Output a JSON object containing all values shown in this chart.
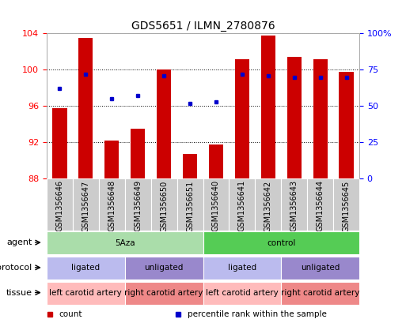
{
  "title": "GDS5651 / ILMN_2780876",
  "samples": [
    "GSM1356646",
    "GSM1356647",
    "GSM1356648",
    "GSM1356649",
    "GSM1356650",
    "GSM1356651",
    "GSM1356640",
    "GSM1356641",
    "GSM1356642",
    "GSM1356643",
    "GSM1356644",
    "GSM1356645"
  ],
  "bar_values": [
    95.8,
    103.5,
    92.2,
    93.5,
    100.0,
    90.7,
    91.8,
    101.2,
    103.8,
    101.4,
    101.2,
    99.8
  ],
  "dot_values": [
    62,
    72,
    55,
    57,
    71,
    52,
    53,
    72,
    71,
    70,
    70,
    70
  ],
  "bar_bottom": 88,
  "ylim_left": [
    88,
    104
  ],
  "ylim_right": [
    0,
    100
  ],
  "yticks_left": [
    88,
    92,
    96,
    100,
    104
  ],
  "yticks_right": [
    0,
    25,
    50,
    75,
    100
  ],
  "yticklabels_right": [
    "0",
    "25",
    "50",
    "75",
    "100%"
  ],
  "bar_color": "#cc0000",
  "dot_color": "#0000cc",
  "agent_groups": [
    {
      "label": "5Aza",
      "start": 0,
      "end": 6,
      "color": "#aaddaa"
    },
    {
      "label": "control",
      "start": 6,
      "end": 12,
      "color": "#55cc55"
    }
  ],
  "protocol_groups": [
    {
      "label": "ligated",
      "start": 0,
      "end": 3,
      "color": "#bbbbee"
    },
    {
      "label": "unligated",
      "start": 3,
      "end": 6,
      "color": "#9988cc"
    },
    {
      "label": "ligated",
      "start": 6,
      "end": 9,
      "color": "#bbbbee"
    },
    {
      "label": "unligated",
      "start": 9,
      "end": 12,
      "color": "#9988cc"
    }
  ],
  "tissue_groups": [
    {
      "label": "left carotid artery",
      "start": 0,
      "end": 3,
      "color": "#ffbbbb"
    },
    {
      "label": "right carotid artery",
      "start": 3,
      "end": 6,
      "color": "#ee8888"
    },
    {
      "label": "left carotid artery",
      "start": 6,
      "end": 9,
      "color": "#ffbbbb"
    },
    {
      "label": "right carotid artery",
      "start": 9,
      "end": 12,
      "color": "#ee8888"
    }
  ],
  "row_labels": [
    "agent",
    "protocol",
    "tissue"
  ],
  "legend_items": [
    {
      "label": "count",
      "color": "#cc0000"
    },
    {
      "label": "percentile rank within the sample",
      "color": "#0000cc"
    }
  ],
  "bar_width": 0.55,
  "background_color": "#ffffff",
  "xticklabel_bg": "#cccccc"
}
